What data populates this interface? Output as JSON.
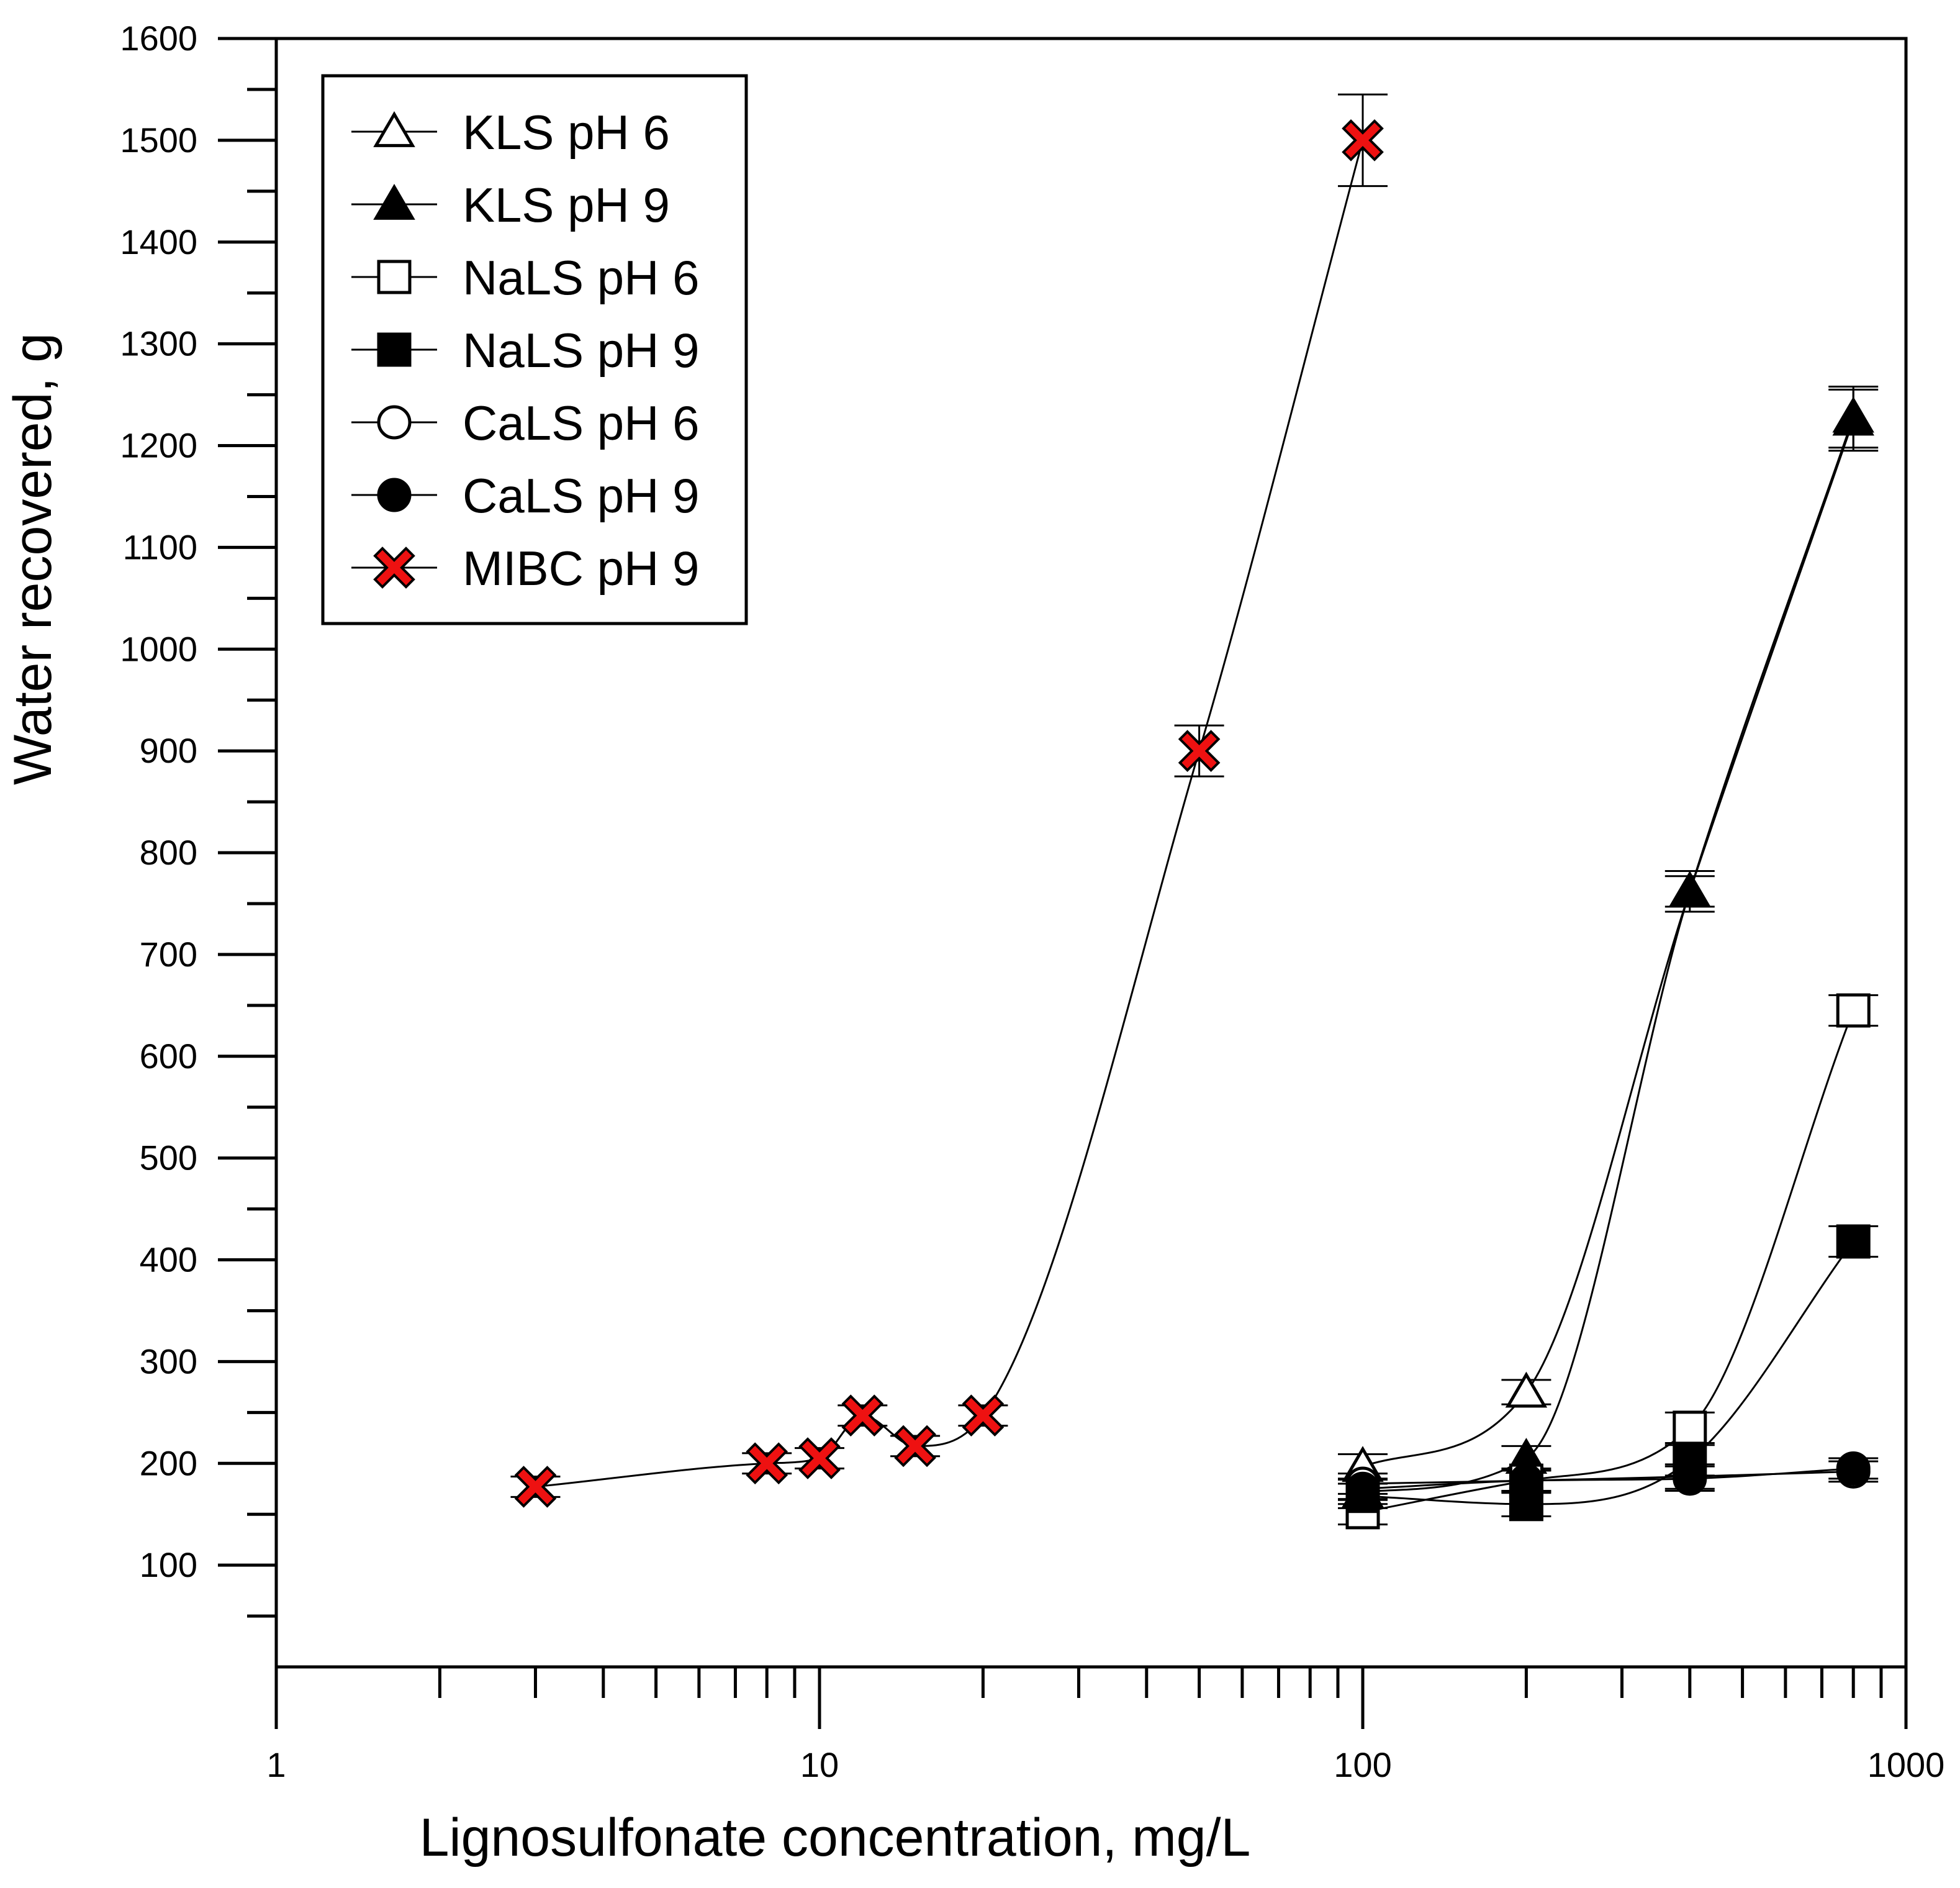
{
  "chart_data": {
    "type": "scatter",
    "title": "",
    "xlabel": "Lignosulfonate concentration, mg/L",
    "ylabel": "Water recovered, g",
    "xscale": "log",
    "xlim": [
      1,
      1000
    ],
    "ylim": [
      0,
      1600
    ],
    "x_tick_labels": [
      "1",
      "10",
      "100",
      "1000"
    ],
    "y_tick_labels": [
      "100",
      "200",
      "300",
      "400",
      "500",
      "600",
      "700",
      "800",
      "900",
      "1000",
      "1100",
      "1200",
      "1300",
      "1400",
      "1500",
      "1600"
    ],
    "legend_position": "top-left",
    "series": [
      {
        "name": "KLS pH 6",
        "marker": "triangle-open",
        "x": [
          100,
          200,
          400,
          800
        ],
        "y": [
          197,
          270,
          762,
          1225
        ],
        "err": [
          12,
          12,
          15,
          30
        ]
      },
      {
        "name": "KLS pH 9",
        "marker": "triangle-filled",
        "x": [
          100,
          200,
          400,
          800
        ],
        "y": [
          172,
          205,
          762,
          1228
        ],
        "err": [
          12,
          12,
          20,
          30
        ]
      },
      {
        "name": "NaLS pH 6",
        "marker": "square-open",
        "x": [
          100,
          200,
          400,
          800
        ],
        "y": [
          152,
          183,
          235,
          645
        ],
        "err": [
          12,
          12,
          15,
          15
        ]
      },
      {
        "name": "NaLS pH 9",
        "marker": "square-filled",
        "x": [
          100,
          200,
          400,
          800
        ],
        "y": [
          168,
          160,
          203,
          418
        ],
        "err": [
          12,
          12,
          15,
          15
        ]
      },
      {
        "name": "CaLS pH 6",
        "marker": "circle-open",
        "x": [
          100,
          200,
          400,
          800
        ],
        "y": [
          180,
          183,
          187,
          192
        ],
        "err": [
          10,
          10,
          12,
          10
        ]
      },
      {
        "name": "CaLS pH 9",
        "marker": "circle-filled",
        "x": [
          100,
          200,
          400,
          800
        ],
        "y": [
          175,
          183,
          185,
          195
        ],
        "err": [
          10,
          10,
          12,
          10
        ]
      },
      {
        "name": "MIBC pH 9",
        "marker": "x-red",
        "x": [
          3,
          8,
          10,
          12,
          15,
          20,
          50,
          100
        ],
        "y": [
          177,
          200,
          205,
          247,
          217,
          247,
          900,
          1500
        ],
        "err": [
          10,
          10,
          10,
          10,
          10,
          10,
          25,
          45
        ]
      }
    ]
  }
}
